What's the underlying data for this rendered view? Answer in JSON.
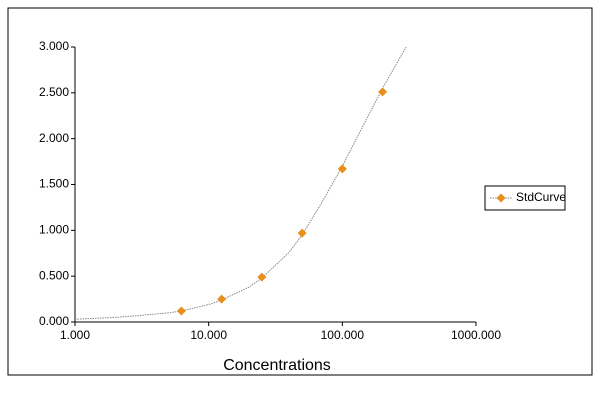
{
  "chart_data": {
    "type": "scatter",
    "x_label": "Concentrations",
    "xscale": "log",
    "xlim": [
      1,
      1000
    ],
    "xticks": [
      {
        "value": 1,
        "label": "1.000"
      },
      {
        "value": 10,
        "label": "10.000"
      },
      {
        "value": 100,
        "label": "100.000"
      },
      {
        "value": 1000,
        "label": "1000.000"
      }
    ],
    "ylim": [
      0,
      3
    ],
    "yticks": [
      {
        "value": 0,
        "label": "0.000"
      },
      {
        "value": 0.5,
        "label": "0.500"
      },
      {
        "value": 1,
        "label": "1.000"
      },
      {
        "value": 1.5,
        "label": "1.500"
      },
      {
        "value": 2,
        "label": "2.000"
      },
      {
        "value": 2.5,
        "label": "2.500"
      },
      {
        "value": 3,
        "label": "3.000"
      }
    ],
    "grid": false,
    "legend": "right",
    "series": [
      {
        "name": "StdCurve",
        "color": "#e8901c",
        "x": [
          6.25,
          12.5,
          25,
          50,
          100,
          200
        ],
        "values": [
          0.12,
          0.25,
          0.49,
          0.97,
          1.67,
          2.51
        ]
      }
    ],
    "curve": {
      "color": "#888888",
      "x": [
        1,
        2,
        3,
        5,
        6.25,
        10,
        12.5,
        20,
        25,
        40,
        50,
        70,
        100,
        150,
        200,
        300
      ],
      "y": [
        0.03,
        0.05,
        0.07,
        0.1,
        0.12,
        0.19,
        0.24,
        0.38,
        0.48,
        0.76,
        0.95,
        1.3,
        1.7,
        2.2,
        2.55,
        3.0
      ]
    }
  }
}
